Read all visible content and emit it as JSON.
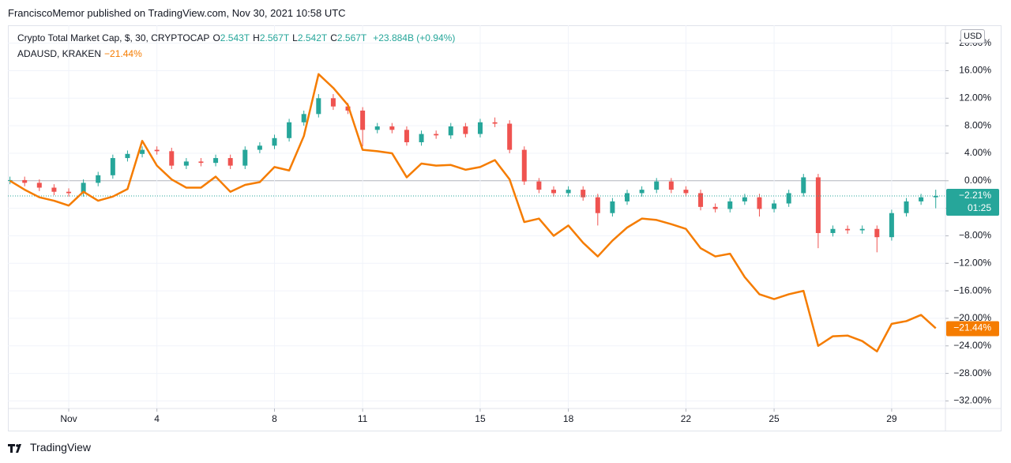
{
  "header": "FranciscoMemor published on TradingView.com, Nov 30, 2021 10:58 UTC",
  "currency_button": "USD",
  "footer": {
    "brand": "TradingView"
  },
  "chart_data": {
    "type": "combo",
    "x": [
      -1,
      -0.5,
      0,
      0.5,
      1,
      1.5,
      2,
      2.5,
      3,
      3.5,
      4,
      4.5,
      5,
      5.5,
      6,
      6.5,
      7,
      7.5,
      8,
      8.5,
      9,
      9.5,
      10,
      10.5,
      11,
      11.5,
      12,
      12.5,
      13,
      13.5,
      14,
      14.5,
      15,
      15.5,
      16,
      16.5,
      17,
      17.5,
      18,
      18.5,
      19,
      19.5,
      20,
      20.5,
      21,
      21.5,
      22,
      22.5,
      23,
      23.5,
      24,
      24.5,
      25,
      25.5,
      26,
      26.5,
      27,
      27.5,
      28,
      28.5,
      29,
      29.5,
      30,
      30.5
    ],
    "xlim": [
      -1.07,
      30.83
    ],
    "xticks": [
      {
        "value": 1,
        "label": "Nov"
      },
      4,
      8,
      11,
      15,
      18,
      22,
      25,
      29
    ],
    "ylim": [
      -33.1,
      22.6
    ],
    "yticks": [
      {
        "value": 20,
        "label": "20.00%"
      },
      {
        "value": 16,
        "label": "16.00%"
      },
      {
        "value": 12,
        "label": "12.00%"
      },
      {
        "value": 8,
        "label": "8.00%"
      },
      {
        "value": 4,
        "label": "4.00%"
      },
      {
        "value": 0,
        "label": "0.00%"
      },
      {
        "value": -4,
        "label": "−4.00%"
      },
      {
        "value": -8,
        "label": "−8.00%"
      },
      {
        "value": -12,
        "label": "−12.00%"
      },
      {
        "value": -16,
        "label": "−16.00%"
      },
      {
        "value": -20,
        "label": "−20.00%"
      },
      {
        "value": -24,
        "label": "−24.00%"
      },
      {
        "value": -28,
        "label": "−28.00%"
      },
      {
        "value": -32,
        "label": "−32.00%"
      }
    ],
    "grid": true,
    "series": [
      {
        "name": "Crypto Total Market Cap, $, 30, CRYPTOCAP",
        "type": "candlestick",
        "up_color": "#26a69a",
        "down_color": "#ef5350",
        "legend_values": [
          {
            "key": "O",
            "value": "2.543T"
          },
          {
            "key": "H",
            "value": "2.567T"
          },
          {
            "key": "L",
            "value": "2.542T"
          },
          {
            "key": "C",
            "value": "2.567T"
          }
        ],
        "change_label": "+23.884B (+0.94%)",
        "last_label": "−2.21%",
        "countdown": "01:25",
        "open": [
          0.0,
          0.1,
          -0.3,
          -1.0,
          -1.6,
          -1.8,
          -0.3,
          0.8,
          3.3,
          3.9,
          4.5,
          4.3,
          2.2,
          2.8,
          2.6,
          3.3,
          2.2,
          4.5,
          5.1,
          6.2,
          8.5,
          9.7,
          12.0,
          10.8,
          10.2,
          7.4,
          7.9,
          7.4,
          5.6,
          6.8,
          6.6,
          7.9,
          6.8,
          8.5,
          8.3,
          4.5,
          -0.1,
          -1.3,
          -1.8,
          -1.3,
          -2.4,
          -4.7,
          -3.0,
          -1.8,
          -1.3,
          -0.1,
          -1.3,
          -1.8,
          -3.8,
          -4.1,
          -3.0,
          -2.4,
          -4.1,
          -3.3,
          -1.8,
          0.5,
          -7.6,
          -7.0,
          -7.2,
          -7.0,
          -8.2,
          -4.7,
          -3.0,
          -2.4
        ],
        "high": [
          0.6,
          0.6,
          0.2,
          -0.5,
          -1.1,
          0.2,
          1.3,
          3.8,
          4.4,
          5.0,
          5.0,
          4.8,
          3.3,
          3.3,
          3.8,
          3.8,
          5.0,
          5.6,
          6.7,
          9.0,
          10.2,
          12.6,
          12.6,
          11.3,
          10.7,
          8.4,
          8.4,
          7.9,
          7.3,
          7.3,
          8.4,
          8.4,
          9.0,
          9.2,
          8.8,
          5.0,
          0.4,
          -0.8,
          -0.8,
          -0.8,
          -1.9,
          -2.5,
          -1.3,
          -0.8,
          0.4,
          0.4,
          -0.8,
          -1.3,
          -3.3,
          -2.5,
          -1.9,
          -1.9,
          -2.8,
          -1.3,
          1.0,
          1.0,
          -6.5,
          -6.5,
          -6.5,
          -6.5,
          -4.2,
          -2.5,
          -1.9,
          -1.3
        ],
        "low": [
          -0.5,
          -0.8,
          -1.5,
          -2.1,
          -2.3,
          -2.3,
          -0.8,
          0.3,
          2.8,
          3.4,
          3.8,
          1.7,
          1.7,
          2.1,
          2.1,
          1.7,
          1.7,
          4.0,
          4.6,
          5.7,
          8.0,
          9.2,
          10.3,
          9.7,
          5.0,
          6.9,
          6.9,
          5.1,
          5.1,
          6.1,
          6.1,
          6.3,
          6.3,
          7.8,
          4.0,
          -0.6,
          -1.8,
          -2.3,
          -2.3,
          -2.9,
          -6.5,
          -5.2,
          -3.5,
          -2.3,
          -1.8,
          -1.8,
          -2.3,
          -4.3,
          -4.6,
          -4.6,
          -3.5,
          -5.2,
          -4.6,
          -3.8,
          -2.3,
          -9.8,
          -8.1,
          -7.7,
          -7.7,
          -10.4,
          -8.7,
          -5.2,
          -3.5,
          -4.0
        ],
        "close": [
          0.1,
          -0.3,
          -1.0,
          -1.6,
          -1.8,
          -0.3,
          0.8,
          3.3,
          3.9,
          4.5,
          4.3,
          2.2,
          2.8,
          2.6,
          3.3,
          2.2,
          4.5,
          5.1,
          6.2,
          8.5,
          9.7,
          12.0,
          10.8,
          10.2,
          7.4,
          7.9,
          7.4,
          5.6,
          6.8,
          6.6,
          7.9,
          6.8,
          8.5,
          8.3,
          4.5,
          -0.1,
          -1.3,
          -1.8,
          -1.3,
          -2.4,
          -4.7,
          -3.0,
          -1.8,
          -1.3,
          -0.1,
          -1.3,
          -1.8,
          -3.8,
          -4.1,
          -3.0,
          -2.4,
          -4.1,
          -3.3,
          -1.8,
          0.5,
          -7.6,
          -7.0,
          -7.2,
          -7.0,
          -8.2,
          -4.7,
          -3.0,
          -2.4,
          -2.21
        ]
      },
      {
        "name": "ADAUSD, KRAKEN",
        "type": "line",
        "color": "#f57c00",
        "change_label": "−21.44%",
        "last_label": "−21.44%",
        "values": [
          0.0,
          -1.3,
          -2.4,
          -2.9,
          -3.6,
          -1.6,
          -2.9,
          -2.3,
          -1.2,
          5.8,
          2.2,
          0.2,
          -1.0,
          -1.0,
          0.6,
          -1.6,
          -0.6,
          -0.2,
          2.0,
          1.5,
          6.5,
          15.5,
          13.5,
          11.0,
          4.5,
          4.3,
          4.0,
          0.5,
          2.5,
          2.2,
          2.3,
          1.6,
          2.0,
          3.0,
          0.2,
          -6.0,
          -5.5,
          -8.0,
          -6.5,
          -9.0,
          -11.0,
          -8.7,
          -6.8,
          -5.5,
          -5.7,
          -6.3,
          -7.0,
          -9.8,
          -11.0,
          -10.6,
          -14.0,
          -16.5,
          -17.2,
          -16.5,
          -16.0,
          -24.0,
          -22.6,
          -22.5,
          -23.3,
          -24.8,
          -20.8,
          -20.4,
          -19.5,
          -21.44
        ]
      }
    ]
  }
}
